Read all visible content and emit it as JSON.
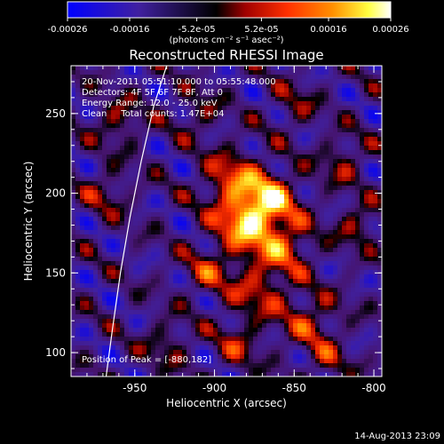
{
  "colorbar": {
    "tick_labels": [
      "-0.00026",
      "-0.00016",
      "-5.2e-05",
      "5.2e-05",
      "0.00016",
      "0.00026"
    ],
    "ticks": [
      -0.00026,
      -0.00016,
      -5.2e-05,
      5.2e-05,
      0.00016,
      0.00026
    ],
    "range": [
      -0.00026,
      0.00026
    ],
    "unit_label": "(photons cm⁻² s⁻¹ asec⁻²)",
    "colors": [
      "#0000ff",
      "#4020a0",
      "#000000",
      "#a00000",
      "#ff3000",
      "#ff9000",
      "#ffff40",
      "#ffffff"
    ]
  },
  "chart_data": {
    "type": "heatmap",
    "title": "Reconstructed RHESSI Image",
    "xlabel": "Heliocentric X (arcsec)",
    "ylabel": "Heliocentric Y (arcsec)",
    "xlim": [
      -990,
      -795
    ],
    "ylim": [
      85,
      280
    ],
    "x_ticks": [
      -950,
      -900,
      -850,
      -800
    ],
    "y_ticks": [
      100,
      150,
      200,
      250
    ],
    "x_tick_labels": [
      "-950",
      "-900",
      "-850",
      "-800"
    ],
    "y_tick_labels": [
      "100",
      "150",
      "200",
      "250"
    ],
    "limb_curve": {
      "x": [
        -968,
        -964,
        -959,
        -953,
        -946,
        -938,
        -930
      ],
      "y": [
        85,
        115,
        150,
        185,
        220,
        255,
        280
      ]
    },
    "peak": {
      "x": -880,
      "y": 182
    },
    "hot_spots": [
      {
        "x": -880,
        "y": 182,
        "v": 0.00026,
        "r": 14
      },
      {
        "x": -865,
        "y": 198,
        "v": 0.0002,
        "r": 12
      },
      {
        "x": -890,
        "y": 210,
        "v": 0.00016,
        "r": 12
      },
      {
        "x": -855,
        "y": 168,
        "v": 0.00015,
        "r": 12
      },
      {
        "x": -872,
        "y": 140,
        "v": 0.00014,
        "r": 14
      },
      {
        "x": -840,
        "y": 120,
        "v": 0.00013,
        "r": 12
      },
      {
        "x": -905,
        "y": 150,
        "v": 0.00012,
        "r": 10
      },
      {
        "x": -960,
        "y": 245,
        "v": 0.00012,
        "r": 10
      },
      {
        "x": -968,
        "y": 200,
        "v": 0.0001,
        "r": 10
      },
      {
        "x": -820,
        "y": 220,
        "v": 0.00011,
        "r": 10
      },
      {
        "x": -810,
        "y": 180,
        "v": 0.00012,
        "r": 9
      },
      {
        "x": -930,
        "y": 105,
        "v": 0.0001,
        "r": 10
      },
      {
        "x": -885,
        "y": 105,
        "v": 0.00011,
        "r": 10
      },
      {
        "x": -830,
        "y": 95,
        "v": 0.0001,
        "r": 9
      },
      {
        "x": -910,
        "y": 250,
        "v": 9e-05,
        "r": 10
      },
      {
        "x": -850,
        "y": 255,
        "v": 9e-05,
        "r": 10
      }
    ]
  },
  "annotations": {
    "time_range": "20-Nov-2011 05:51:10.000 to 05:55:48.000",
    "detectors": "Detectors: 4F 5F 6F 7F 8F, Att 0",
    "energy_range": "Energy Range: 12.0 - 25.0 keV",
    "algorithm": "Clean     Total counts: 1.47E+04",
    "peak_position": "Position of Peak = [-880,182]"
  },
  "footer": {
    "timestamp": "14-Aug-2013 23:09"
  }
}
